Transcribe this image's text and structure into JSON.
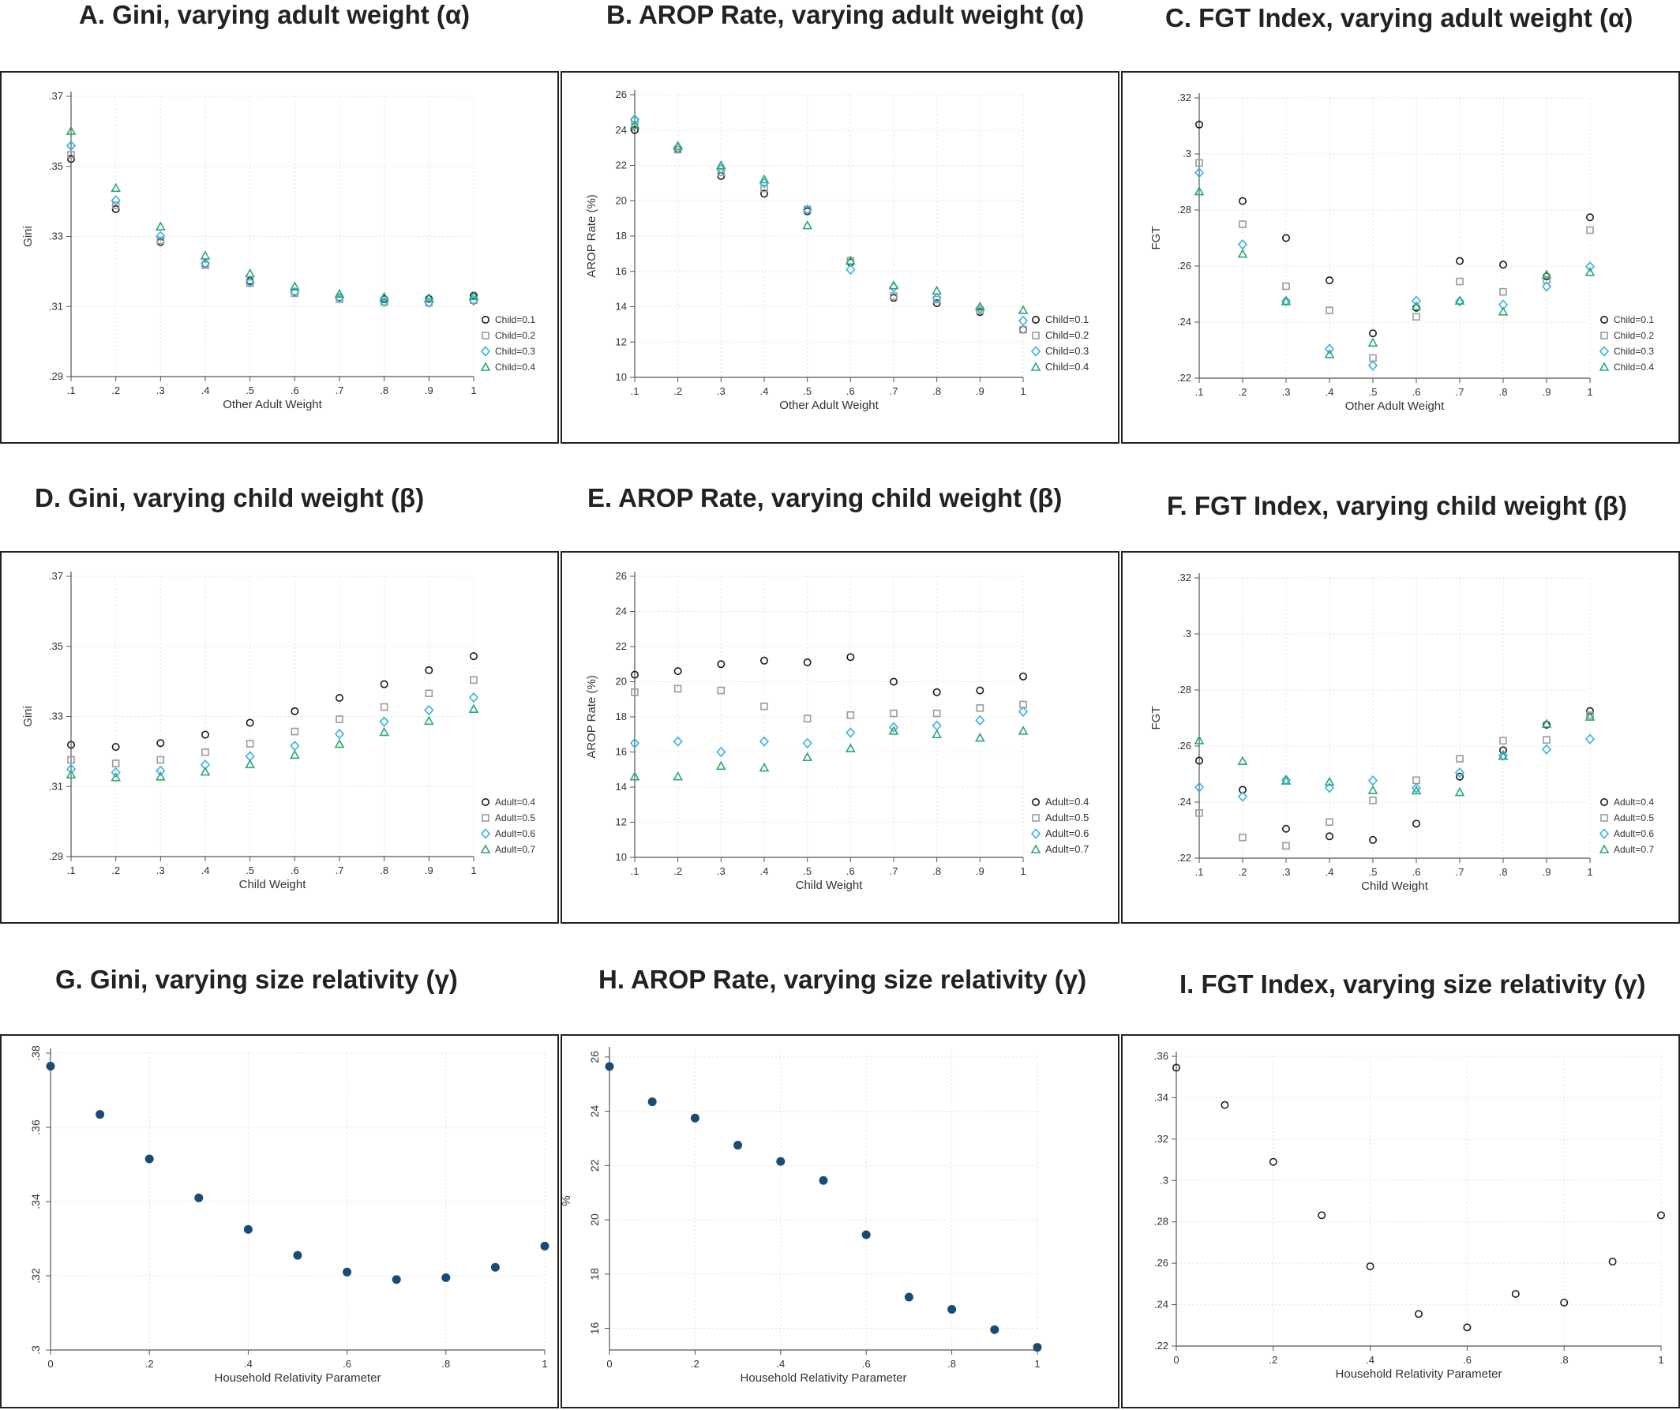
{
  "colors": {
    "s1": "#1a1a1a",
    "s2": "#9a9a9a",
    "s3": "#3bb2dc",
    "s4": "#2aa876",
    "solid": "#1b4a72",
    "grid": "#e3e3e3"
  },
  "panels": [
    {
      "title": "A.   Gini, varying adult weight (α)",
      "chart_data": {
        "type": "scatter",
        "xlabel": "Other Adult Weight",
        "ylabel": "Gini",
        "x": [
          0.1,
          0.2,
          0.3,
          0.4,
          0.5,
          0.6,
          0.7,
          0.8,
          0.9,
          1
        ],
        "xticks": [
          ".1",
          ".2",
          ".3",
          ".4",
          ".5",
          ".6",
          ".7",
          ".8",
          ".9",
          "1"
        ],
        "yticks": [
          ".29",
          ".31",
          ".33",
          ".35",
          ".37"
        ],
        "ylim": [
          0.29,
          0.37
        ],
        "series": [
          {
            "name": "Child=0.1",
            "marker": "circle",
            "values": [
              0.3521,
              0.3378,
              0.3284,
              0.3222,
              0.3173,
              0.3142,
              0.3126,
              0.3121,
              0.3122,
              0.3131
            ]
          },
          {
            "name": "Child=0.2",
            "marker": "square",
            "values": [
              0.3533,
              0.3389,
              0.3289,
              0.3218,
              0.3167,
              0.3138,
              0.3121,
              0.3113,
              0.3111,
              0.3118
            ]
          },
          {
            "name": "Child=0.3",
            "marker": "diamond",
            "values": [
              0.3559,
              0.3403,
              0.3301,
              0.3223,
              0.3169,
              0.3141,
              0.3125,
              0.3113,
              0.3111,
              0.3117
            ]
          },
          {
            "name": "Child=0.4",
            "marker": "triangle",
            "values": [
              0.3601,
              0.3438,
              0.3328,
              0.3245,
              0.3194,
              0.3157,
              0.3136,
              0.3127,
              0.3124,
              0.3129
            ]
          }
        ]
      }
    },
    {
      "title": "B. AROP Rate, varying adult weight (α)",
      "chart_data": {
        "type": "scatter",
        "xlabel": "Other Adult Weight",
        "ylabel": "AROP Rate (%)",
        "x": [
          0.1,
          0.2,
          0.3,
          0.4,
          0.5,
          0.6,
          0.7,
          0.8,
          0.9,
          1
        ],
        "xticks": [
          ".1",
          ".2",
          ".3",
          ".4",
          ".5",
          ".6",
          ".7",
          ".8",
          ".9",
          "1"
        ],
        "yticks": [
          "10",
          "12",
          "14",
          "16",
          "18",
          "20",
          "22",
          "24",
          "26"
        ],
        "ylim": [
          10,
          26
        ],
        "series": [
          {
            "name": "Child=0.1",
            "marker": "circle",
            "values": [
              24.0,
              22.9,
              21.4,
              20.4,
              19.4,
              16.5,
              14.5,
              14.2,
              13.7,
              12.7
            ]
          },
          {
            "name": "Child=0.2",
            "marker": "square",
            "values": [
              24.5,
              22.9,
              21.6,
              20.7,
              19.5,
              16.6,
              14.6,
              14.4,
              13.8,
              12.7
            ]
          },
          {
            "name": "Child=0.3",
            "marker": "diamond",
            "values": [
              24.6,
              23.0,
              21.8,
              21.0,
              19.5,
              16.1,
              15.1,
              14.5,
              13.9,
              13.2
            ]
          },
          {
            "name": "Child=0.4",
            "marker": "triangle",
            "values": [
              24.3,
              23.1,
              22.0,
              21.2,
              18.6,
              16.6,
              15.2,
              14.9,
              14.0,
              13.8
            ]
          }
        ]
      }
    },
    {
      "title": "C. FGT Index, varying adult weight (α)",
      "chart_data": {
        "type": "scatter",
        "xlabel": "Other Adult Weight",
        "ylabel": "FGT",
        "x": [
          0.1,
          0.2,
          0.3,
          0.4,
          0.5,
          0.6,
          0.7,
          0.8,
          0.9,
          1
        ],
        "xticks": [
          ".1",
          ".2",
          ".3",
          ".4",
          ".5",
          ".6",
          ".7",
          ".8",
          ".9",
          "1"
        ],
        "yticks": [
          ".22",
          ".24",
          ".26",
          ".28",
          ".3",
          ".32"
        ],
        "ylim": [
          0.22,
          0.32
        ],
        "series": [
          {
            "name": "Child=0.1",
            "marker": "circle",
            "values": [
              0.3105,
              0.2832,
              0.27,
              0.2549,
              0.236,
              0.2451,
              0.2618,
              0.2605,
              0.2563,
              0.2774
            ]
          },
          {
            "name": "Child=0.2",
            "marker": "square",
            "values": [
              0.2968,
              0.2749,
              0.2528,
              0.2442,
              0.2272,
              0.2419,
              0.2545,
              0.2508,
              0.2551,
              0.2728
            ]
          },
          {
            "name": "Child=0.3",
            "marker": "diamond",
            "values": [
              0.2933,
              0.2677,
              0.2475,
              0.2304,
              0.2245,
              0.2476,
              0.2474,
              0.2462,
              0.2527,
              0.2598
            ]
          },
          {
            "name": "Child=0.4",
            "marker": "triangle",
            "values": [
              0.2866,
              0.2643,
              0.2474,
              0.2285,
              0.2326,
              0.2456,
              0.2476,
              0.2437,
              0.2569,
              0.2578
            ]
          }
        ]
      }
    },
    {
      "title": "D. Gini, varying child weight (β)",
      "chart_data": {
        "type": "scatter",
        "xlabel": "Child Weight",
        "ylabel": "Gini",
        "x": [
          0.1,
          0.2,
          0.3,
          0.4,
          0.5,
          0.6,
          0.7,
          0.8,
          0.9,
          1
        ],
        "xticks": [
          ".1",
          ".2",
          ".3",
          ".4",
          ".5",
          ".6",
          ".7",
          ".8",
          ".9",
          "1"
        ],
        "yticks": [
          ".29",
          ".31",
          ".33",
          ".35",
          ".37"
        ],
        "ylim": [
          0.29,
          0.37
        ],
        "series": [
          {
            "name": "Adult=0.4",
            "marker": "circle",
            "values": [
              0.3219,
              0.3213,
              0.3224,
              0.3248,
              0.3282,
              0.3315,
              0.3353,
              0.3392,
              0.3432,
              0.3472
            ]
          },
          {
            "name": "Adult=0.5",
            "marker": "square",
            "values": [
              0.3176,
              0.3166,
              0.3176,
              0.3198,
              0.3222,
              0.3257,
              0.3292,
              0.3327,
              0.3366,
              0.3404
            ]
          },
          {
            "name": "Adult=0.6",
            "marker": "diamond",
            "values": [
              0.315,
              0.314,
              0.3145,
              0.3162,
              0.3186,
              0.3216,
              0.325,
              0.3285,
              0.3318,
              0.3354
            ]
          },
          {
            "name": "Adult=0.7",
            "marker": "triangle",
            "values": [
              0.3134,
              0.3126,
              0.3128,
              0.3142,
              0.3163,
              0.319,
              0.3221,
              0.3255,
              0.3287,
              0.3321
            ]
          }
        ]
      }
    },
    {
      "title": "E. AROP Rate, varying child weight (β)",
      "chart_data": {
        "type": "scatter",
        "xlabel": "Child Weight",
        "ylabel": "AROP Rate (%)",
        "x": [
          0.1,
          0.2,
          0.3,
          0.4,
          0.5,
          0.6,
          0.7,
          0.8,
          0.9,
          1
        ],
        "xticks": [
          ".1",
          ".2",
          ".3",
          ".4",
          ".5",
          ".6",
          ".7",
          ".8",
          ".9",
          "1"
        ],
        "yticks": [
          "10",
          "12",
          "14",
          "16",
          "18",
          "20",
          "22",
          "24",
          "26"
        ],
        "ylim": [
          10,
          26
        ],
        "series": [
          {
            "name": "Adult=0.4",
            "marker": "circle",
            "values": [
              20.4,
              20.6,
              21.0,
              21.2,
              21.1,
              21.4,
              20.0,
              19.4,
              19.5,
              20.3
            ]
          },
          {
            "name": "Adult=0.5",
            "marker": "square",
            "values": [
              19.4,
              19.6,
              19.5,
              18.6,
              17.9,
              18.1,
              18.2,
              18.2,
              18.5,
              18.7
            ]
          },
          {
            "name": "Adult=0.6",
            "marker": "diamond",
            "values": [
              16.5,
              16.6,
              16.0,
              16.6,
              16.5,
              17.1,
              17.4,
              17.5,
              17.8,
              18.3
            ]
          },
          {
            "name": "Adult=0.7",
            "marker": "triangle",
            "values": [
              14.6,
              14.6,
              15.2,
              15.1,
              15.7,
              16.2,
              17.2,
              17.0,
              16.8,
              17.2
            ]
          }
        ]
      }
    },
    {
      "title": "F. FGT Index, varying child weight (β)",
      "chart_data": {
        "type": "scatter",
        "xlabel": "Child Weight",
        "ylabel": "FGT",
        "x": [
          0.1,
          0.2,
          0.3,
          0.4,
          0.5,
          0.6,
          0.7,
          0.8,
          0.9,
          1
        ],
        "xticks": [
          ".1",
          ".2",
          ".3",
          ".4",
          ".5",
          ".6",
          ".7",
          ".8",
          ".9",
          "1"
        ],
        "yticks": [
          ".22",
          ".24",
          ".26",
          ".28",
          ".3",
          ".32"
        ],
        "ylim": [
          0.22,
          0.32
        ],
        "series": [
          {
            "name": "Adult=0.4",
            "marker": "circle",
            "values": [
              0.2548,
              0.2444,
              0.2305,
              0.2278,
              0.2265,
              0.2323,
              0.2491,
              0.2585,
              0.2676,
              0.2725
            ]
          },
          {
            "name": "Adult=0.5",
            "marker": "square",
            "values": [
              0.2361,
              0.2274,
              0.2244,
              0.2329,
              0.2406,
              0.2478,
              0.2555,
              0.2619,
              0.2622,
              0.271
            ]
          },
          {
            "name": "Adult=0.6",
            "marker": "diamond",
            "values": [
              0.2453,
              0.242,
              0.2479,
              0.2451,
              0.2477,
              0.245,
              0.2505,
              0.2567,
              0.2588,
              0.2625
            ]
          },
          {
            "name": "Adult=0.7",
            "marker": "triangle",
            "values": [
              0.262,
              0.2546,
              0.2476,
              0.2472,
              0.2442,
              0.2441,
              0.2435,
              0.2564,
              0.2679,
              0.2704
            ]
          }
        ]
      }
    },
    {
      "title": "G. Gini, varying size relativity (γ)",
      "chart_data": {
        "type": "scatter",
        "xlabel": "Household Relativity Parameter",
        "ylabel": "",
        "x": [
          0,
          0.1,
          0.2,
          0.3,
          0.4,
          0.5,
          0.6,
          0.7,
          0.8,
          0.9,
          1
        ],
        "xticks": [
          "0",
          ".2",
          ".4",
          ".6",
          ".8",
          "1"
        ],
        "xtick_values": [
          0,
          0.2,
          0.4,
          0.6,
          0.8,
          1
        ],
        "yticks": [
          ".3",
          ".32",
          ".34",
          ".36",
          ".38"
        ],
        "ylim": [
          0.3,
          0.38
        ],
        "rotate_y": true,
        "series": [
          {
            "name": "",
            "marker": "dot",
            "values": [
              0.3765,
              0.3635,
              0.3515,
              0.341,
              0.3325,
              0.3255,
              0.321,
              0.319,
              0.3195,
              0.3223,
              0.328
            ]
          }
        ]
      }
    },
    {
      "title": "H. AROP Rate, varying size relativity (γ)",
      "chart_data": {
        "type": "scatter",
        "xlabel": "Household Relativity Parameter",
        "ylabel": "%",
        "x": [
          0,
          0.1,
          0.2,
          0.3,
          0.4,
          0.5,
          0.6,
          0.7,
          0.8,
          0.9,
          1
        ],
        "xticks": [
          "0",
          ".2",
          ".4",
          ".6",
          ".8",
          "1"
        ],
        "xtick_values": [
          0,
          0.2,
          0.4,
          0.6,
          0.8,
          1
        ],
        "yticks": [
          "16",
          "18",
          "20",
          "22",
          "24",
          "26"
        ],
        "ylim": [
          15.2,
          26.2
        ],
        "ytick_values": [
          16,
          18,
          20,
          22,
          24,
          26
        ],
        "rotate_y": true,
        "series": [
          {
            "name": "",
            "marker": "dot",
            "values": [
              25.65,
              24.35,
              23.75,
              22.75,
              22.15,
              21.45,
              19.45,
              17.15,
              16.7,
              15.95,
              15.3
            ]
          }
        ]
      }
    },
    {
      "title": "I. FGT Index, varying size relativity (γ)",
      "chart_data": {
        "type": "scatter",
        "xlabel": "Household Relativity Parameter",
        "ylabel": "",
        "x": [
          0,
          0.1,
          0.2,
          0.3,
          0.4,
          0.5,
          0.6,
          0.7,
          0.8,
          0.9,
          1
        ],
        "xticks": [
          "0",
          ".2",
          ".4",
          ".6",
          ".8",
          "1"
        ],
        "xtick_values": [
          0,
          0.2,
          0.4,
          0.6,
          0.8,
          1
        ],
        "yticks": [
          ".22",
          ".24",
          ".26",
          ".28",
          ".3",
          ".32",
          ".34",
          ".36"
        ],
        "ylim": [
          0.22,
          0.36
        ],
        "series": [
          {
            "name": "",
            "marker": "circle",
            "values": [
              0.3545,
              0.3365,
              0.309,
              0.2832,
              0.2585,
              0.2355,
              0.229,
              0.2452,
              0.241,
              0.2608,
              0.2832
            ]
          }
        ]
      }
    }
  ]
}
